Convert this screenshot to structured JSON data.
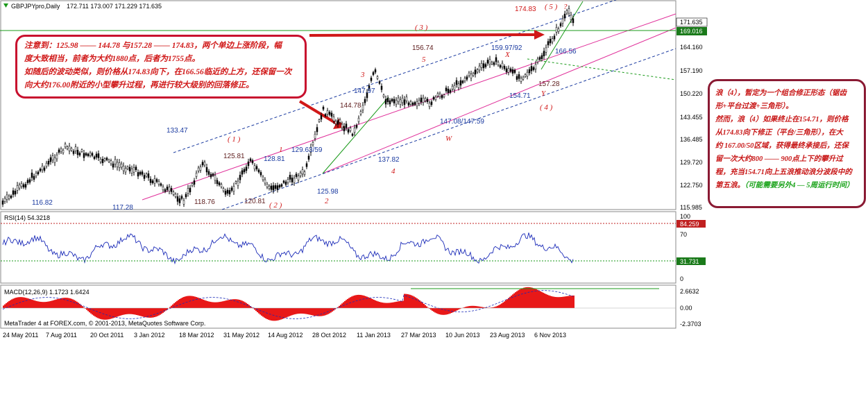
{
  "header": {
    "symbol": "GBPJPYpro,Daily",
    "ohlc": "172.711 173.007 171.229 171.635"
  },
  "price_axis": [
    "171.635",
    "169.016",
    "164.160",
    "157.190",
    "150.220",
    "143.455",
    "136.485",
    "129.720",
    "122.750",
    "115.985"
  ],
  "rsi": {
    "label": "RSI(14) 54.3218",
    "ticks": [
      "100",
      "84.259",
      "70",
      "31.731",
      "0"
    ]
  },
  "macd": {
    "label": "MACD(12,26,9) 1.1723 1.6424",
    "ticks": [
      "2.6632",
      "0.00",
      "-2.3703"
    ]
  },
  "footer": "MetaTrader 4 at FOREX.com, © 2001-2013, MetaQuotes Software Corp.",
  "date_labels": [
    "24 May 2011",
    "7 Aug 2011",
    "20 Oct 2011",
    "3 Jan 2012",
    "18 Mar 2012",
    "31 May 2012",
    "14 Aug 2012",
    "28 Oct 2012",
    "11 Jan 2013",
    "27 Mar 2013",
    "10 Jun 2013",
    "23 Aug 2013",
    "6 Nov 2013"
  ],
  "annotations": {
    "p116_82": "116.82",
    "p117_28": "117.28",
    "p133_47": "133.47",
    "p125_81": "125.81",
    "p118_76": "118.76",
    "p128_81": "128.81",
    "p120_81": "120.81",
    "p129_63": "129.63/59",
    "p125_98": "125.98",
    "p144_78": "144.78",
    "p147_97": "147.97",
    "p137_82": "137.82",
    "p156_74": "156.74",
    "p147_08": "147.08/147.59",
    "p159_97": "159.97/92",
    "p154_71": "154.71",
    "p174_83": "174.83",
    "p166_56": "166.56",
    "p157_28": "157.28",
    "w1": "( 1 )",
    "w2": "( 2 )",
    "w3": "( 3 )",
    "w4": "( 4 )",
    "w5": "( 5 )",
    "s1": "1",
    "s2": "2",
    "s3": "3",
    "s4": "4",
    "s5": "5",
    "wW": "W",
    "wX": "X",
    "wY": "Y",
    "q": "?"
  },
  "note1": {
    "line1": "注意到：125.98 —— 144.78 与157.28 —— 174.83，两个单边上涨阶段，幅",
    "line2": "度大致相当，前者为大约1880点，后者为1755点。",
    "line3": "如随后的波动类似，则价格从174.83向下，在166.56临近的上方，还保留一次",
    "line4": "向大约176.00附近的小型攀升过程，再进行较大级别的回落修正。"
  },
  "note2": {
    "line1": "浪（4），暂定为一个组合修正形态（锯齿",
    "line2": "形+平台过渡+三角形）。",
    "line3": "然而，浪（4）如果终止在154.71，则价格",
    "line4": "从174.83向下修正（平台/三角形），在大",
    "line5": "约 167.00/50区域，获得最终承接后，还保",
    "line6": "留一次大约800 —— 900点上下的攀升过",
    "line7": "程，充当154.71向上五浪推动浪分波段中的",
    "line8a": "第五浪。",
    "line8b": "（可能需要另外4 — 5周运行时间）"
  },
  "colors": {
    "up": "#1a9a1a",
    "pink": "#e0309a",
    "blue": "#1a3aa0",
    "red": "#d01818",
    "macd": "#e81818",
    "rsi": "#1a2ab8"
  },
  "chart_data": [
    {
      "type": "candlestick",
      "title": "GBPJPYpro,Daily",
      "x": [
        "24 May 2011",
        "7 Aug 2011",
        "20 Oct 2011",
        "3 Jan 2012",
        "18 Mar 2012",
        "31 May 2012",
        "14 Aug 2012",
        "28 Oct 2012",
        "11 Jan 2013",
        "27 Mar 2013",
        "10 Jun 2013",
        "23 Aug 2013",
        "6 Nov 2013"
      ],
      "ylim": [
        115.985,
        175.0
      ],
      "pivots": [
        {
          "label": "116.82",
          "value": 116.82
        },
        {
          "label": "133.47",
          "value": 133.47
        },
        {
          "label": "117.28",
          "value": 117.28
        },
        {
          "label": "125.81",
          "value": 125.81
        },
        {
          "label": "118.76",
          "value": 118.76
        },
        {
          "label": "128.81",
          "value": 128.81
        },
        {
          "label": "120.81",
          "value": 120.81
        },
        {
          "label": "129.63",
          "value": 129.63
        },
        {
          "label": "125.98",
          "value": 125.98
        },
        {
          "label": "144.78",
          "value": 144.78
        },
        {
          "label": "137.82",
          "value": 137.82
        },
        {
          "label": "147.97",
          "value": 147.97
        },
        {
          "label": "156.74",
          "value": 156.74
        },
        {
          "label": "147.08",
          "value": 147.08
        },
        {
          "label": "159.97",
          "value": 159.97
        },
        {
          "label": "154.71",
          "value": 154.71
        },
        {
          "label": "174.83",
          "value": 174.83
        },
        {
          "label": "166.56",
          "value": 166.56
        },
        {
          "label": "157.28",
          "value": 157.28
        },
        {
          "label": "171.635",
          "value": 171.635
        }
      ],
      "horizontal_lines": [
        169.016
      ]
    },
    {
      "type": "line",
      "title": "RSI(14) 54.3218",
      "last": 54.3218,
      "ylim": [
        0,
        100
      ],
      "levels": [
        84.259,
        31.731
      ]
    },
    {
      "type": "bar",
      "title": "MACD(12,26,9) 1.1723 1.6424",
      "main": 1.1723,
      "signal": 1.6424,
      "ylim": [
        -2.3703,
        2.6632
      ]
    }
  ]
}
